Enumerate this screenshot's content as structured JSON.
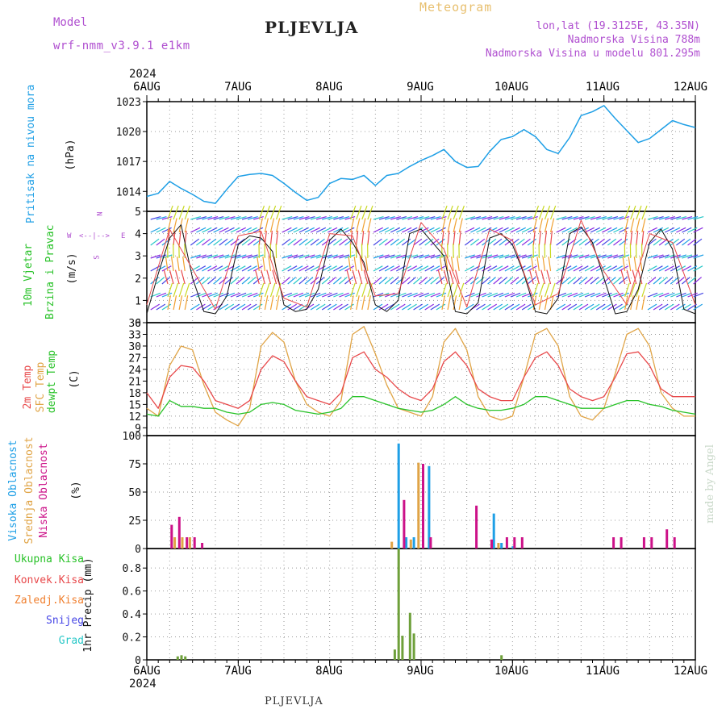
{
  "header": {
    "model_label": "Model",
    "model_name": "wrf-nmm_v3.9.1  e1km",
    "station": "PLJEVLJA",
    "product": "Meteogram",
    "coords": "lon,lat (19.3125E, 43.35N)",
    "elevation": "Nadmorska Visina 788m",
    "model_elevation": "Nadmorska Visina u modelu 801.295m",
    "footer_station": "PLJEVLJA",
    "credit": "made by Angel"
  },
  "colors": {
    "pressure": "#1e9fe6",
    "t2m": "#e8484a",
    "tsfc": "#e0a446",
    "dewpt": "#28c228",
    "vis_cloud": "#1e9fe6",
    "mid_cloud": "#e0a446",
    "low_cloud": "#cc1188",
    "total_precip": "#6ea03a",
    "conv_precip": "#e8484a",
    "frz_precip": "#f08030",
    "snow": "#4646e6",
    "grad": "#28c8c8",
    "purple": "#b050d0"
  },
  "time_axis": {
    "top_labels": [
      "6AUG",
      "7AUG",
      "8AUG",
      "9AUG",
      "10AUG",
      "11AUG",
      "12AUG"
    ],
    "top_year": "2024",
    "bottom_labels": [
      "6AUG",
      "7AUG",
      "8AUG",
      "9AUG",
      "10AUG",
      "11AUG",
      "12AUG"
    ],
    "bottom_year": "2024"
  },
  "panels": {
    "pressure": {
      "title": "Pritisak na nivou mora",
      "unit": "(hPa)"
    },
    "wind": {
      "title_line1": "10m Vjetar",
      "title_line2": "Brzina i Pravac",
      "unit": "(m/s)",
      "compass": [
        "N",
        "W",
        "E",
        "S"
      ]
    },
    "temp": {
      "t2m": "2m Temp",
      "tsfc": "SFC Temp",
      "dewpt": "dewpt Temp",
      "unit": "(C)"
    },
    "cloud": {
      "vis": "Visoka Oblacnost",
      "mid": "Srednja Oblacnost",
      "low": "Niska Oblacnost",
      "unit": "(%)"
    },
    "precip": {
      "total": "Ukupna Kisa",
      "conv": "Konvek.Kisa",
      "frz": "Zaledj.Kisa",
      "snow": "Snijeg",
      "grad": "Grad",
      "unit": "1hr Precip (mm)"
    }
  },
  "chart_data": [
    {
      "type": "line",
      "name": "pressure",
      "x_unit": "hours since 6AUG 00UTC",
      "ylim": [
        1012,
        1023
      ],
      "yticks": [
        1014,
        1017,
        1020,
        1023
      ],
      "grid": true,
      "series": [
        {
          "name": "Pritisak na nivou mora",
          "x": [
            0,
            3,
            6,
            9,
            12,
            15,
            18,
            21,
            24,
            27,
            30,
            33,
            36,
            39,
            42,
            45,
            48,
            51,
            54,
            57,
            60,
            63,
            66,
            69,
            72,
            75,
            78,
            81,
            84,
            87,
            90,
            93,
            96,
            99,
            102,
            105,
            108,
            111,
            114,
            117,
            120,
            123,
            126,
            129,
            132,
            135,
            138,
            141,
            144
          ],
          "values": [
            1013.5,
            1013.8,
            1015,
            1014.3,
            1013.7,
            1013.0,
            1012.8,
            1014.2,
            1015.5,
            1015.7,
            1015.8,
            1015.6,
            1014.8,
            1013.9,
            1013.1,
            1013.4,
            1014.8,
            1015.3,
            1015.2,
            1015.6,
            1014.6,
            1015.6,
            1015.8,
            1016.5,
            1017.1,
            1017.6,
            1018.2,
            1017.0,
            1016.4,
            1016.5,
            1018.0,
            1019.2,
            1019.5,
            1020.2,
            1019.5,
            1018.2,
            1017.8,
            1019.4,
            1021.6,
            1022.0,
            1022.6,
            1021.3,
            1020.1,
            1018.9,
            1019.3,
            1020.2,
            1021.1,
            1020.7,
            1020.4
          ]
        }
      ]
    },
    {
      "type": "line",
      "name": "wind_speed",
      "x_unit": "hours since 6AUG 00UTC",
      "ylim": [
        0,
        5
      ],
      "yticks": [
        0,
        1,
        2,
        3,
        4,
        5
      ],
      "grid": true,
      "series": [
        {
          "name": "10m speed",
          "x": [
            0,
            3,
            6,
            9,
            12,
            15,
            18,
            21,
            24,
            27,
            30,
            33,
            36,
            39,
            42,
            45,
            48,
            51,
            54,
            57,
            60,
            63,
            66,
            69,
            72,
            75,
            78,
            81,
            84,
            87,
            90,
            93,
            96,
            99,
            102,
            105,
            108,
            111,
            114,
            117,
            120,
            123,
            126,
            129,
            132,
            135,
            138,
            141,
            144
          ],
          "values": [
            0.4,
            2.2,
            3.8,
            4.4,
            2.0,
            0.5,
            0.4,
            1.2,
            3.5,
            3.9,
            3.8,
            3.2,
            0.8,
            0.5,
            0.6,
            1.5,
            3.7,
            4.2,
            3.6,
            2.7,
            0.8,
            0.5,
            1.0,
            4.0,
            4.2,
            3.6,
            3.0,
            0.5,
            0.4,
            0.9,
            3.8,
            4.0,
            3.5,
            2.2,
            0.5,
            0.4,
            1.1,
            4.0,
            4.3,
            3.6,
            2.0,
            0.4,
            0.5,
            1.5,
            3.6,
            4.2,
            3.3,
            0.6,
            0.4
          ]
        },
        {
          "name": "10m gust",
          "x": [
            0,
            6,
            12,
            18,
            24,
            30,
            36,
            42,
            48,
            54,
            60,
            66,
            72,
            78,
            84,
            90,
            96,
            102,
            108,
            114,
            120,
            126,
            132,
            138,
            144
          ],
          "values": [
            0.8,
            4.2,
            2.4,
            0.6,
            3.9,
            4.1,
            1.1,
            0.7,
            4.0,
            3.9,
            1.2,
            1.3,
            4.5,
            3.3,
            0.7,
            4.2,
            3.7,
            0.8,
            1.3,
            4.6,
            2.3,
            0.8,
            4.0,
            3.6,
            0.8
          ]
        }
      ]
    },
    {
      "type": "line",
      "name": "temperature",
      "x_unit": "hours since 6AUG 00UTC",
      "ylim": [
        7,
        36
      ],
      "yticks": [
        9,
        12,
        15,
        18,
        21,
        24,
        27,
        30,
        33,
        36
      ],
      "grid": true,
      "series": [
        {
          "name": "2m Temp",
          "x": [
            0,
            3,
            6,
            9,
            12,
            15,
            18,
            21,
            24,
            27,
            30,
            33,
            36,
            39,
            42,
            45,
            48,
            51,
            54,
            57,
            60,
            63,
            66,
            69,
            72,
            75,
            78,
            81,
            84,
            87,
            90,
            93,
            96,
            99,
            102,
            105,
            108,
            111,
            114,
            117,
            120,
            123,
            126,
            129,
            132,
            135,
            138,
            141,
            144
          ],
          "values": [
            18,
            14,
            22,
            25,
            24.5,
            21,
            16,
            15,
            14,
            16,
            24,
            27.5,
            26,
            21,
            17,
            16,
            15,
            18,
            27,
            28.5,
            24,
            22,
            19,
            17,
            16,
            19,
            26,
            28.5,
            25,
            19,
            17,
            16,
            16,
            22,
            27,
            28.5,
            25,
            19,
            17,
            16,
            17,
            22,
            28,
            28.5,
            25,
            19,
            17,
            17,
            17
          ]
        },
        {
          "name": "SFC Temp",
          "x": [
            0,
            3,
            6,
            9,
            12,
            15,
            18,
            21,
            24,
            27,
            30,
            33,
            36,
            39,
            42,
            45,
            48,
            51,
            54,
            57,
            60,
            63,
            66,
            69,
            72,
            75,
            78,
            81,
            84,
            87,
            90,
            93,
            96,
            99,
            102,
            105,
            108,
            111,
            114,
            117,
            120,
            123,
            126,
            129,
            132,
            135,
            138,
            141,
            144
          ],
          "values": [
            14,
            12,
            25,
            30,
            29,
            20,
            13,
            11,
            9.5,
            14,
            30,
            33.5,
            31,
            21,
            15,
            13,
            12,
            16,
            33,
            35,
            28,
            20,
            14,
            13,
            12,
            17,
            31,
            34.5,
            29,
            17,
            12,
            11,
            12,
            22,
            33,
            34.5,
            30,
            17,
            12,
            11,
            14,
            23,
            33,
            34.5,
            30,
            18,
            14,
            12,
            12
          ]
        },
        {
          "name": "dewpt Temp",
          "x": [
            0,
            3,
            6,
            9,
            12,
            15,
            18,
            21,
            24,
            27,
            30,
            33,
            36,
            39,
            42,
            45,
            48,
            51,
            54,
            57,
            60,
            63,
            66,
            69,
            72,
            75,
            78,
            81,
            84,
            87,
            90,
            93,
            96,
            99,
            102,
            105,
            108,
            111,
            114,
            117,
            120,
            123,
            126,
            129,
            132,
            135,
            138,
            141,
            144
          ],
          "values": [
            12.5,
            12,
            16,
            14.5,
            14.5,
            14,
            14,
            13,
            12.5,
            13,
            15,
            15.5,
            15,
            13.5,
            13,
            12.5,
            13,
            14,
            17,
            17,
            16,
            15,
            14,
            13.5,
            13,
            13.5,
            15,
            17,
            15,
            14,
            13.5,
            13.5,
            14,
            15,
            17,
            17,
            16,
            15,
            14,
            14,
            14,
            15,
            16,
            16,
            15,
            14.5,
            13.5,
            13,
            12.5
          ]
        }
      ]
    },
    {
      "type": "bar",
      "name": "cloud_cover",
      "x_unit": "hours since 6AUG 00UTC",
      "ylim": [
        0,
        100
      ],
      "yticks": [
        0,
        25,
        50,
        75,
        100
      ],
      "grid": true,
      "series": [
        {
          "name": "Visoka Oblacnost",
          "x": [
            66,
            68,
            70,
            74,
            91,
            93,
            96
          ],
          "values": [
            93,
            10,
            10,
            73,
            31,
            5,
            2
          ]
        },
        {
          "name": "Srednja Oblacnost",
          "x": [
            7,
            9,
            11,
            64,
            69,
            71,
            92
          ],
          "values": [
            10,
            10,
            10,
            6,
            8,
            76,
            5
          ]
        },
        {
          "name": "Niska Oblacnost",
          "x": [
            6,
            8,
            10,
            12,
            14,
            67,
            72,
            74,
            86,
            90,
            94,
            96,
            98,
            122,
            124,
            130,
            132,
            136,
            138
          ],
          "values": [
            21,
            28,
            10,
            10,
            5,
            43,
            75,
            10,
            38,
            8,
            10,
            10,
            10,
            10,
            10,
            10,
            10,
            17,
            10
          ]
        }
      ]
    },
    {
      "type": "bar",
      "name": "precipitation",
      "x_unit": "hours since 6AUG 00UTC",
      "ylim": [
        0,
        0.97
      ],
      "yticks": [
        0,
        0.2,
        0.4,
        0.6,
        0.8
      ],
      "grid": true,
      "series": [
        {
          "name": "Ukupna Kisa",
          "x": [
            8,
            9,
            10,
            65,
            66,
            67,
            69,
            70,
            93
          ],
          "values": [
            0.03,
            0.04,
            0.03,
            0.09,
            0.97,
            0.21,
            0.41,
            0.23,
            0.04
          ]
        },
        {
          "name": "Konvek.Kisa",
          "x": [],
          "values": []
        },
        {
          "name": "Zaledj.Kisa",
          "x": [],
          "values": []
        },
        {
          "name": "Snijeg",
          "x": [],
          "values": []
        },
        {
          "name": "Grad",
          "x": [],
          "values": []
        }
      ]
    }
  ]
}
